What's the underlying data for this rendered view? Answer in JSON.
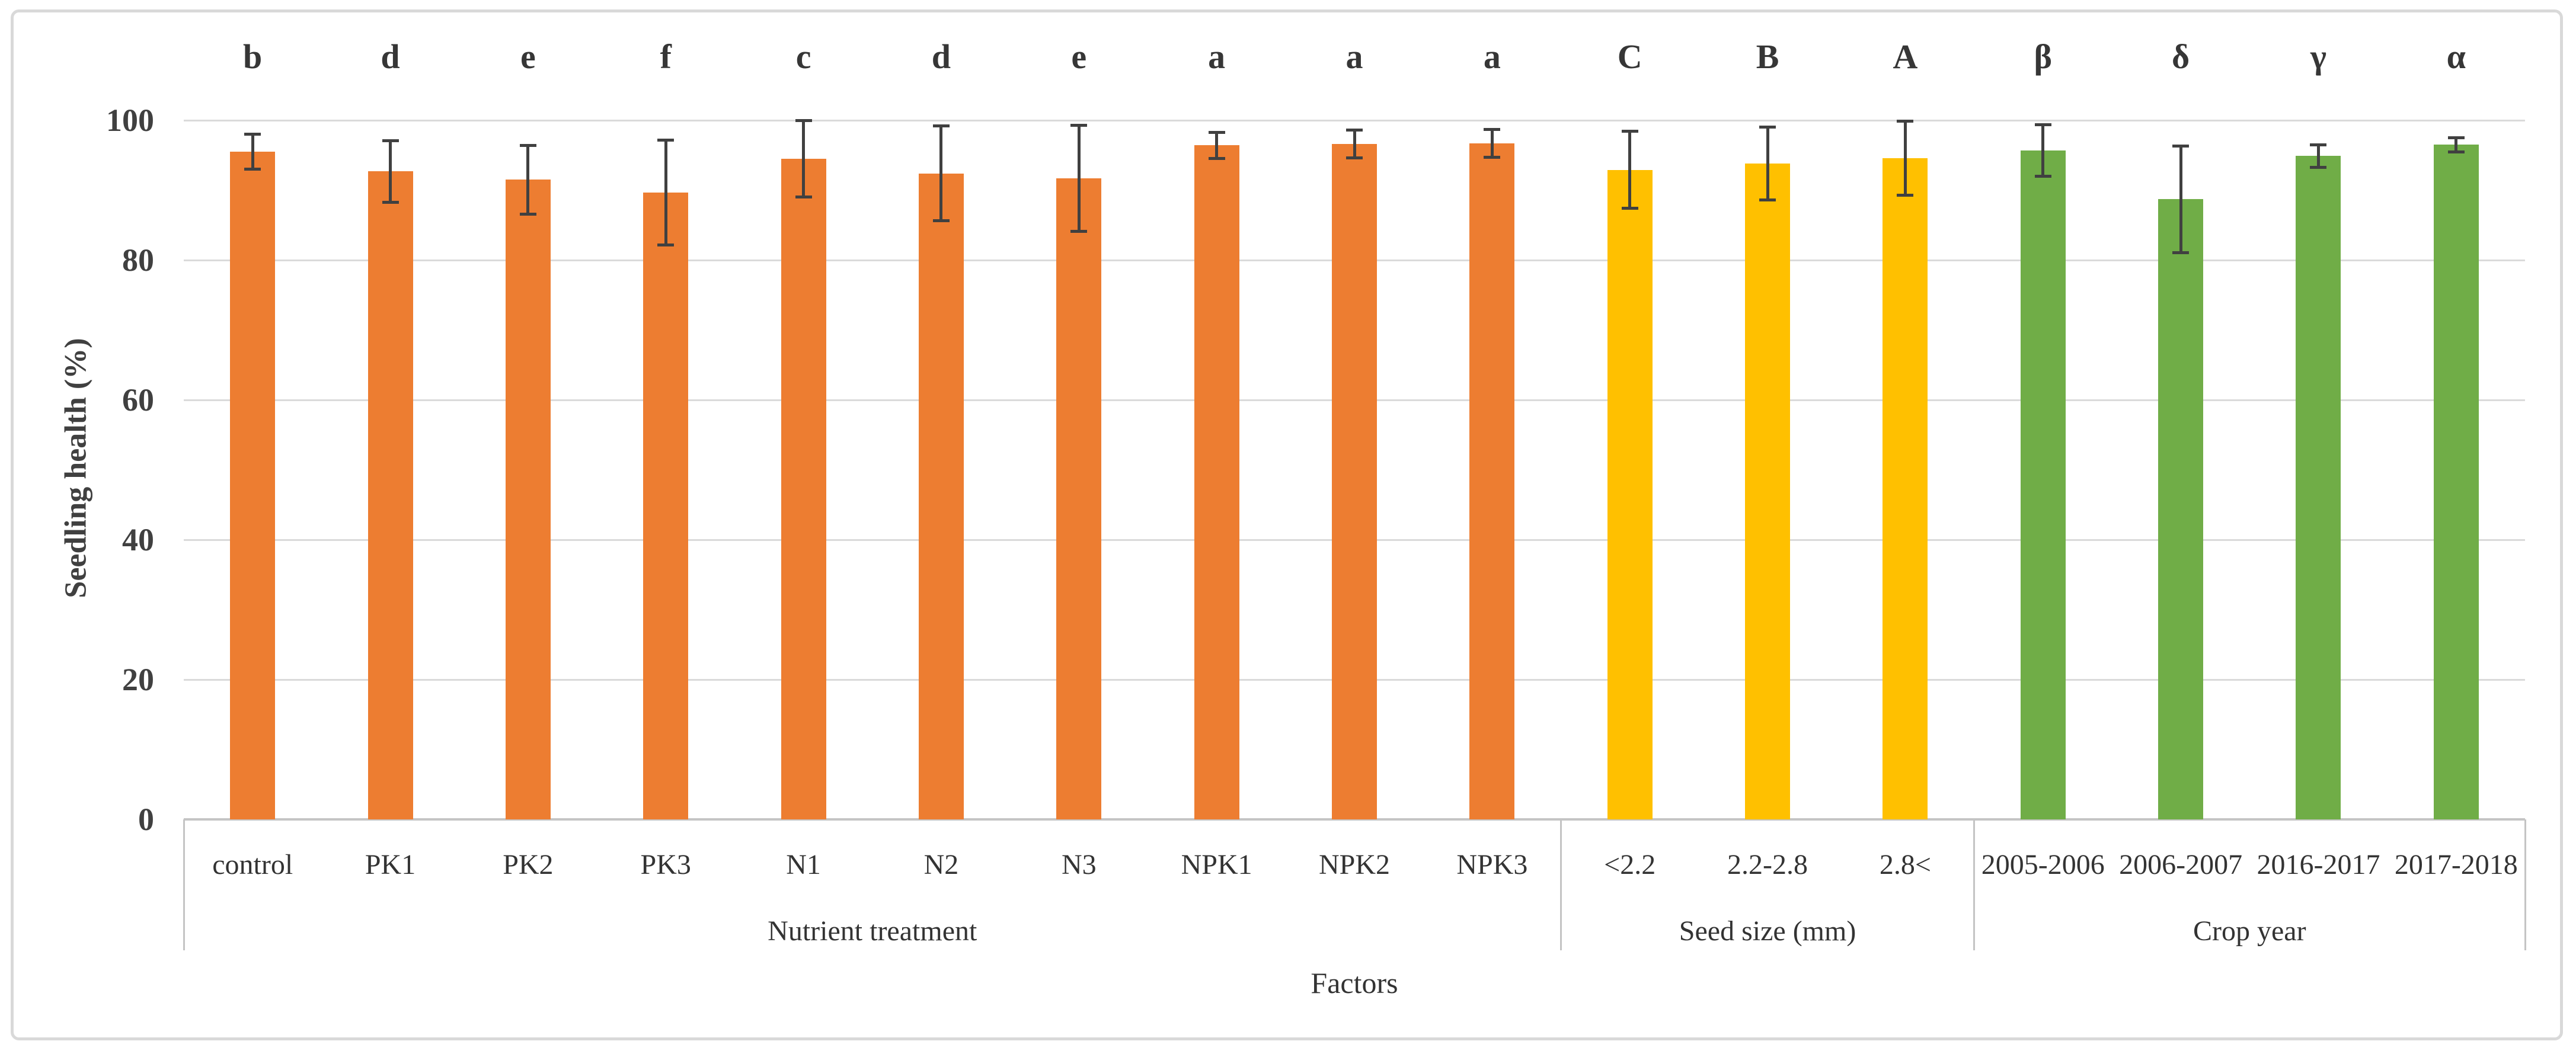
{
  "chart_data": {
    "type": "bar",
    "title": "",
    "ylabel": "Seedling health (%)",
    "xlabel": "Factors",
    "ylim": [
      0,
      100
    ],
    "yticks": [
      0,
      20,
      40,
      60,
      80,
      100
    ],
    "grid": true,
    "legend": "none",
    "error_bars": true,
    "groups": [
      {
        "label": "Nutrient treatment",
        "color": "#ED7D31",
        "categories": [
          "control",
          "PK1",
          "PK2",
          "PK3",
          "N1",
          "N2",
          "N3",
          "NPK1",
          "NPK2",
          "NPK3"
        ],
        "values": [
          95.5,
          92.7,
          91.5,
          89.7,
          94.5,
          92.4,
          91.7,
          96.4,
          96.6,
          96.7
        ],
        "errors": [
          2.5,
          4.4,
          4.9,
          7.5,
          5.5,
          6.8,
          7.6,
          1.9,
          2.0,
          2.0
        ],
        "sig_letters": [
          "b",
          "d",
          "e",
          "f",
          "c",
          "d",
          "e",
          "a",
          "a",
          "a"
        ]
      },
      {
        "label": "Seed size (mm)",
        "color": "#FFC000",
        "categories": [
          "<2.2",
          "2.2-2.8",
          "2.8<"
        ],
        "values": [
          92.9,
          93.8,
          94.6
        ],
        "errors": [
          5.5,
          5.2,
          5.3
        ],
        "sig_letters": [
          "C",
          "B",
          "A"
        ]
      },
      {
        "label": "Crop year",
        "color": "#70AD47",
        "categories": [
          "2005-2006",
          "2006-2007",
          "2016-2017",
          "2017-2018"
        ],
        "values": [
          95.7,
          88.7,
          94.9,
          96.5
        ],
        "errors": [
          3.7,
          7.6,
          1.6,
          1.0
        ],
        "sig_letters": [
          "β",
          "δ",
          "γ",
          "α"
        ]
      }
    ],
    "style": {
      "error_bar_color": "#404040",
      "gridline_color": "#dadada",
      "axis_line_color": "#c4c4c4",
      "text_color": "#333333",
      "border_color": "#d9d9d9",
      "background": "#ffffff"
    }
  }
}
